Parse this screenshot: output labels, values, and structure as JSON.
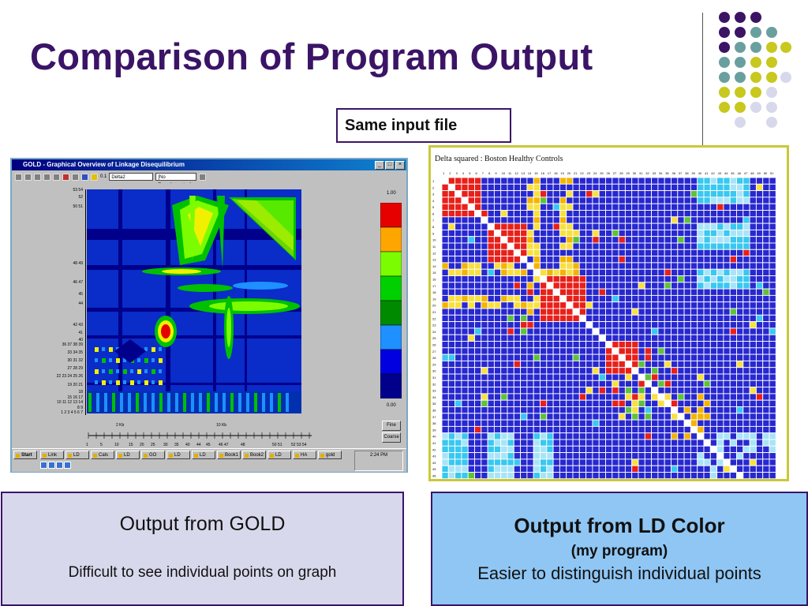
{
  "slide": {
    "title": "Comparison of Program Output",
    "same_input_label": "Same input file",
    "left_caption": {
      "heading": "Output from GOLD",
      "text": "Difficult to see individual points on graph"
    },
    "right_caption": {
      "heading": "Output from LD Color",
      "subheading": "(my program)",
      "text": "Easier to distinguish individual points"
    }
  },
  "gold_window": {
    "title": "GOLD - Graphical Overview of Linkage Disequilibrium",
    "toolbar": {
      "zoom": "0.1",
      "measure_select": "Delta2",
      "transform_select": "[No Transformation]"
    },
    "y_labels": [
      "53 54",
      "52",
      "50 51",
      "48 49",
      "46 47",
      "45",
      "44",
      "42 43",
      "41",
      "40",
      "36 37 38 39",
      "33 34 35",
      "30 31 32",
      "27 28 29",
      "22 23 24 25 26",
      "19 20 21",
      "18",
      "15 16 17",
      "10 11 12 13 14",
      "8 9",
      "1 2 3 4 5 6 7"
    ],
    "scale": {
      "top": "1.00",
      "bottom": "0.00",
      "colors": [
        "#e60000",
        "#ffa500",
        "#7cfc00",
        "#00d000",
        "#008a00",
        "#1e90ff",
        "#0000e0",
        "#00008b"
      ]
    },
    "x_distance_labels": [
      "2 Kb",
      "10 Kb"
    ],
    "x_marker_labels": [
      "1",
      "5",
      "10",
      "15",
      "20",
      "25",
      "30",
      "35",
      "40",
      "44",
      "45",
      "46 47",
      "48",
      "50 51",
      "52 53 54"
    ],
    "buttons": {
      "fine": "Fine",
      "coarse": "Coarse"
    },
    "taskbar": {
      "start": "Start",
      "tasks": [
        "Link",
        "LD",
        "Cals",
        "LD",
        "GO",
        "LD",
        "LD",
        "Book1",
        "Book2",
        "LD",
        "HA",
        "gold"
      ],
      "time": "2:24 PM"
    }
  },
  "ld_color": {
    "title": "Delta squared : Boston Healthy Controls",
    "n_markers": 51,
    "colors": {
      "red": "#e8201a",
      "orange": "#f4b400",
      "yellow": "#f8e040",
      "green": "#5ec23a",
      "cyan": "#38c8f0",
      "light_blue": "#a8e4f8",
      "blue": "#2828d0",
      "white": "#ffffff"
    }
  },
  "decor": {
    "dot_colors": [
      "#3b1466",
      "#6a9fa0",
      "#c8c81e",
      "#d8d8ec"
    ]
  }
}
